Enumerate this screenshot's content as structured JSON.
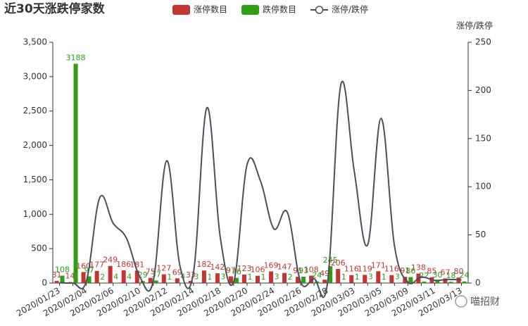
{
  "chart_data": {
    "type": "bar-line",
    "title": "近30天涨跌停家数",
    "y2_label": "涨停/跌停",
    "watermark": "喵招财",
    "categories": [
      "2020/01/23",
      null,
      "2020/02/04",
      null,
      "2020/02/06",
      null,
      "2020/02/10",
      null,
      "2020/02/12",
      null,
      "2020/02/14",
      null,
      "2020/02/18",
      null,
      "2020/02/20",
      null,
      "2020/02/24",
      null,
      "2020/02/26",
      null,
      "2020/02/28",
      null,
      "2020/03/03",
      null,
      "2020/03/05",
      null,
      "2020/03/09",
      null,
      "2020/03/11",
      null,
      "2020/03/13"
    ],
    "series": [
      {
        "name": "涨停数目",
        "kind": "bar",
        "color": "#c23531",
        "values": [
          31,
          14,
          160,
          177,
          249,
          186,
          181,
          75,
          127,
          69,
          33,
          182,
          142,
          97,
          123,
          106,
          169,
          147,
          91,
          108,
          49,
          206,
          116,
          119,
          171,
          116,
          91,
          138,
          85,
          67,
          80
        ]
      },
      {
        "name": "跌停数目",
        "kind": "bar",
        "color": "#2f9e12",
        "values": [
          108,
          3188,
          97,
          2,
          4,
          4,
          29,
          37,
          1,
          4,
          3,
          1,
          3,
          76,
          1,
          1,
          3,
          2,
          93,
          24,
          245,
          1,
          1,
          3,
          1,
          3,
          86,
          22,
          30,
          18,
          24
        ]
      },
      {
        "name": "涨停/跌停",
        "kind": "line",
        "axis": "y2",
        "color": "#4a4f5c",
        "values": [
          0.29,
          0,
          1.65,
          88.5,
          62.25,
          46.5,
          6.24,
          2.03,
          127,
          17.25,
          11,
          182,
          47.33,
          1.28,
          123,
          106,
          56.33,
          73.5,
          0.98,
          4.5,
          0.2,
          206,
          116,
          39.67,
          171,
          38.67,
          1.06,
          6.27,
          2.83,
          3.72,
          3.33
        ]
      }
    ],
    "ylim": [
      0,
      3500
    ],
    "yticks": [
      0,
      500,
      {
        "value": 1000,
        "label": "1,000"
      },
      {
        "value": 1500,
        "label": "1,500"
      },
      {
        "value": 2000,
        "label": "2,000"
      },
      {
        "value": 2500,
        "label": "2,500"
      },
      {
        "value": 3000,
        "label": "3,000"
      },
      {
        "value": 3500,
        "label": "3,500"
      }
    ],
    "y2lim": [
      0,
      250
    ],
    "y2ticks": [
      0,
      50,
      100,
      150,
      200,
      250
    ]
  }
}
